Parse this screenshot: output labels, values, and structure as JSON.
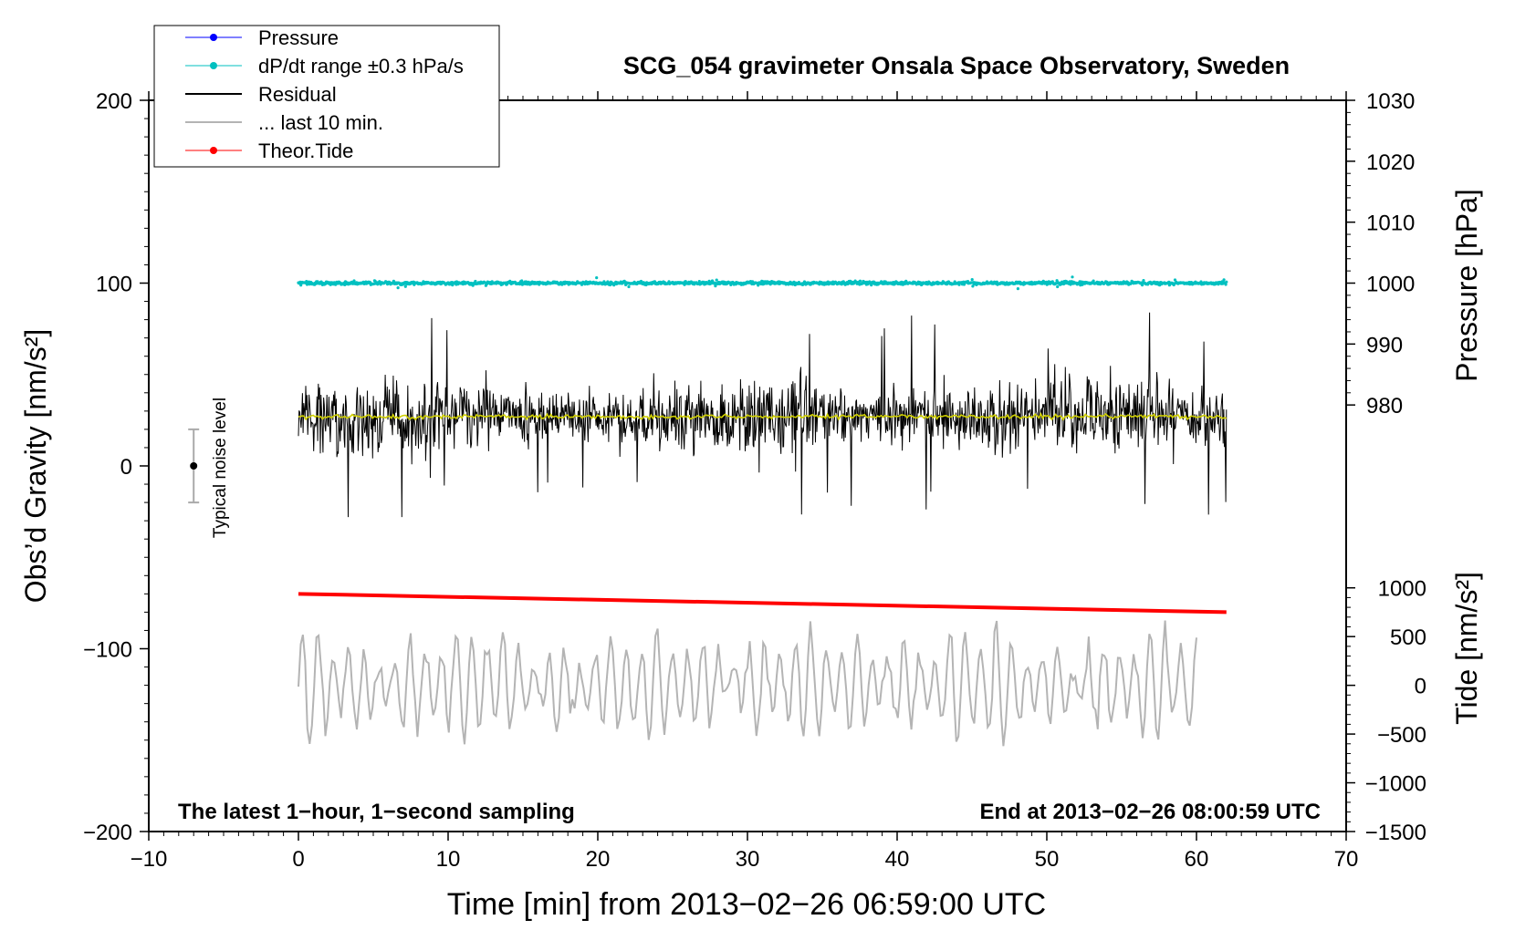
{
  "chart_data": {
    "type": "line",
    "title": "SCG_054 gravimeter Onsala Space Observatory, Sweden",
    "xlabel": "Time [min] from 2013−02−26 06:59:00 UTC",
    "ylabel_left": "Obs’d Gravity [nm/s²]",
    "ylabel_right_pressure": "Pressure [hPa]",
    "ylabel_right_tide": "Tide [nm/s²]",
    "xlim": [
      -10,
      70
    ],
    "ylim": [
      -200,
      200
    ],
    "x_ticks": [
      -10,
      0,
      10,
      20,
      30,
      40,
      50,
      60,
      70
    ],
    "x_tick_labels": [
      "−10",
      "0",
      "10",
      "20",
      "30",
      "40",
      "50",
      "60",
      "70"
    ],
    "y_ticks": [
      -200,
      -100,
      0,
      100,
      200
    ],
    "y_tick_labels": [
      "−200",
      "−100",
      "0",
      "100",
      "200"
    ],
    "pressure_ticks": [
      980,
      990,
      1000,
      1010,
      1020,
      1030
    ],
    "pressure_tick_labels": [
      "980",
      "990",
      "1000",
      "1010",
      "1020",
      "1030"
    ],
    "pressure_gravity_mapping": {
      "pressure": [
        1000,
        1030
      ],
      "gravity": [
        100,
        200
      ]
    },
    "tide_ticks": [
      -1500,
      -1000,
      -500,
      0,
      500,
      1000
    ],
    "tide_tick_labels": [
      "−1500",
      "−1000",
      "−500",
      "0",
      "500",
      "1000"
    ],
    "tide_gravity_mapping": {
      "tide": [
        -1500,
        1000
      ],
      "gravity": [
        -200,
        -66.7
      ]
    },
    "legend_position": "top-left",
    "legend": [
      {
        "label": "Pressure",
        "color": "#0000ff",
        "marker": true,
        "width": 1
      },
      {
        "label": "dP/dt range ±0.3 hPa/s",
        "color": "#00c0c0",
        "marker": true,
        "width": 1
      },
      {
        "label": "Residual",
        "color": "#000000",
        "marker": false,
        "width": 2
      },
      {
        "label": "... last 10 min.",
        "color": "#b4b4b4",
        "marker": false,
        "width": 2
      },
      {
        "label": "Theor.Tide",
        "color": "#ff0000",
        "marker": true,
        "width": 1
      }
    ],
    "annotations": {
      "bottom_left": "The latest 1−hour, 1−second sampling",
      "bottom_right": "End at 2013−02−26 08:00:59 UTC",
      "noise_label": "Typical noise level"
    },
    "noise_bar": {
      "x": -7,
      "center": 0,
      "half_range": 20
    },
    "series": [
      {
        "name": "dP/dt range",
        "color": "#00c0c0",
        "x_range": [
          0,
          62
        ],
        "center": 100,
        "spread": 1.5
      },
      {
        "name": "Residual",
        "color": "#000000",
        "x_range": [
          0,
          62
        ],
        "center": 27,
        "typical_range": [
          0,
          60
        ],
        "extremes": [
          -28,
          85
        ]
      },
      {
        "name": "Residual (smoothed)",
        "color": "#d0d000",
        "x_range": [
          0,
          62
        ],
        "center": 27
      },
      {
        "name": "Theor.Tide",
        "color": "#ff0000",
        "x": [
          0,
          62
        ],
        "y": [
          -70,
          -80
        ]
      },
      {
        "name": "... last 10 min.",
        "color": "#b4b4b4",
        "x_range": [
          0,
          60
        ],
        "center": -120,
        "typical_range": [
          -160,
          -88
        ],
        "extremes": [
          -167,
          -74
        ]
      }
    ]
  }
}
